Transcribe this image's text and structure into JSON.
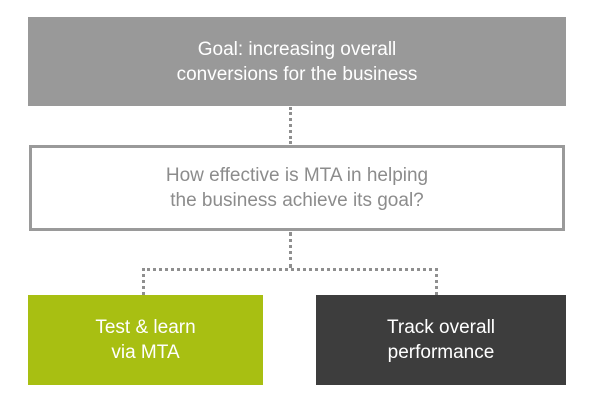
{
  "goal_box": {
    "line1": "Goal: increasing overall",
    "line2": "conversions for the business"
  },
  "question_box": {
    "line1": "How effective is MTA in helping",
    "line2": "the business achieve its goal?"
  },
  "test_box": {
    "line1": "Test & learn",
    "line2": "via MTA"
  },
  "track_box": {
    "line1": "Track overall",
    "line2": "performance"
  },
  "colors": {
    "goal_bg": "#999999",
    "question_border": "#9a9a9a",
    "question_text": "#8c8c8c",
    "test_bg": "#a8bf12",
    "track_bg": "#3d3d3d",
    "connector": "#8f8f8f"
  }
}
